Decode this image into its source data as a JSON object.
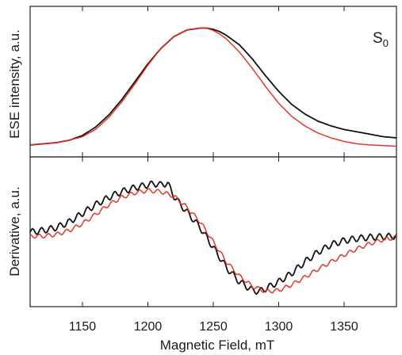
{
  "chart_data": [
    {
      "type": "line",
      "panel": "top",
      "ylabel": "ESE intensity, a.u.",
      "annotation": {
        "base": "S",
        "subscript": "0"
      },
      "xlim": [
        1110,
        1390
      ],
      "ylim": [
        0,
        1.05
      ],
      "series": [
        {
          "color": "#111111",
          "x": [
            1110,
            1120,
            1130,
            1140,
            1150,
            1160,
            1170,
            1180,
            1190,
            1200,
            1210,
            1220,
            1230,
            1240,
            1245,
            1250,
            1255,
            1260,
            1270,
            1280,
            1290,
            1300,
            1310,
            1320,
            1330,
            1340,
            1350,
            1360,
            1370,
            1380,
            1390
          ],
          "y": [
            0.02,
            0.03,
            0.04,
            0.06,
            0.1,
            0.17,
            0.27,
            0.4,
            0.55,
            0.7,
            0.83,
            0.93,
            0.985,
            1.0,
            1.0,
            0.99,
            0.97,
            0.94,
            0.86,
            0.74,
            0.6,
            0.47,
            0.36,
            0.28,
            0.22,
            0.18,
            0.15,
            0.13,
            0.11,
            0.09,
            0.08
          ]
        },
        {
          "color": "#e8291c",
          "x": [
            1110,
            1120,
            1130,
            1140,
            1150,
            1160,
            1170,
            1180,
            1190,
            1200,
            1210,
            1220,
            1230,
            1240,
            1245,
            1250,
            1255,
            1260,
            1270,
            1280,
            1290,
            1300,
            1310,
            1320,
            1330,
            1340,
            1350,
            1360,
            1370,
            1380,
            1390
          ],
          "y": [
            0.02,
            0.03,
            0.04,
            0.06,
            0.09,
            0.15,
            0.25,
            0.38,
            0.53,
            0.69,
            0.83,
            0.93,
            0.985,
            1.0,
            1.0,
            0.98,
            0.95,
            0.91,
            0.8,
            0.66,
            0.51,
            0.37,
            0.26,
            0.18,
            0.12,
            0.08,
            0.05,
            0.03,
            0.02,
            0.015,
            0.01
          ]
        }
      ]
    },
    {
      "type": "line",
      "panel": "bottom",
      "ylabel": "Derivative, a.u.",
      "xlabel": "Magnetic Field, mT",
      "xlim": [
        1110,
        1390
      ],
      "ylim": [
        -1.0,
        1.0
      ],
      "xticks": [
        1150,
        1200,
        1250,
        1300,
        1350
      ],
      "series": [
        {
          "color": "#111111",
          "x": [
            1110,
            1120,
            1130,
            1140,
            1150,
            1160,
            1170,
            1180,
            1190,
            1200,
            1205,
            1210,
            1215,
            1220,
            1225,
            1230,
            1240,
            1250,
            1260,
            1270,
            1280,
            1285,
            1290,
            1300,
            1310,
            1320,
            1330,
            1340,
            1350,
            1360,
            1370,
            1380,
            1390
          ],
          "y": [
            0.07,
            0.1,
            0.15,
            0.25,
            0.4,
            0.55,
            0.68,
            0.78,
            0.85,
            0.9,
            0.92,
            0.9,
            0.93,
            0.7,
            0.55,
            0.42,
            0.15,
            -0.2,
            -0.55,
            -0.8,
            -0.95,
            -0.97,
            -0.92,
            -0.8,
            -0.65,
            -0.45,
            -0.28,
            -0.15,
            -0.08,
            -0.04,
            -0.02,
            -0.01,
            0.0
          ]
        },
        {
          "color": "#e8291c",
          "x": [
            1110,
            1120,
            1130,
            1140,
            1150,
            1160,
            1170,
            1180,
            1190,
            1200,
            1210,
            1220,
            1230,
            1240,
            1250,
            1260,
            1270,
            1280,
            1290,
            1300,
            1310,
            1320,
            1330,
            1340,
            1350,
            1360,
            1370,
            1380,
            1390
          ],
          "y": [
            0.0,
            0.0,
            0.03,
            0.1,
            0.22,
            0.38,
            0.55,
            0.68,
            0.76,
            0.8,
            0.78,
            0.7,
            0.5,
            0.25,
            -0.1,
            -0.45,
            -0.7,
            -0.88,
            -0.97,
            -0.95,
            -0.85,
            -0.72,
            -0.58,
            -0.45,
            -0.33,
            -0.22,
            -0.13,
            -0.06,
            -0.02
          ]
        }
      ]
    }
  ]
}
